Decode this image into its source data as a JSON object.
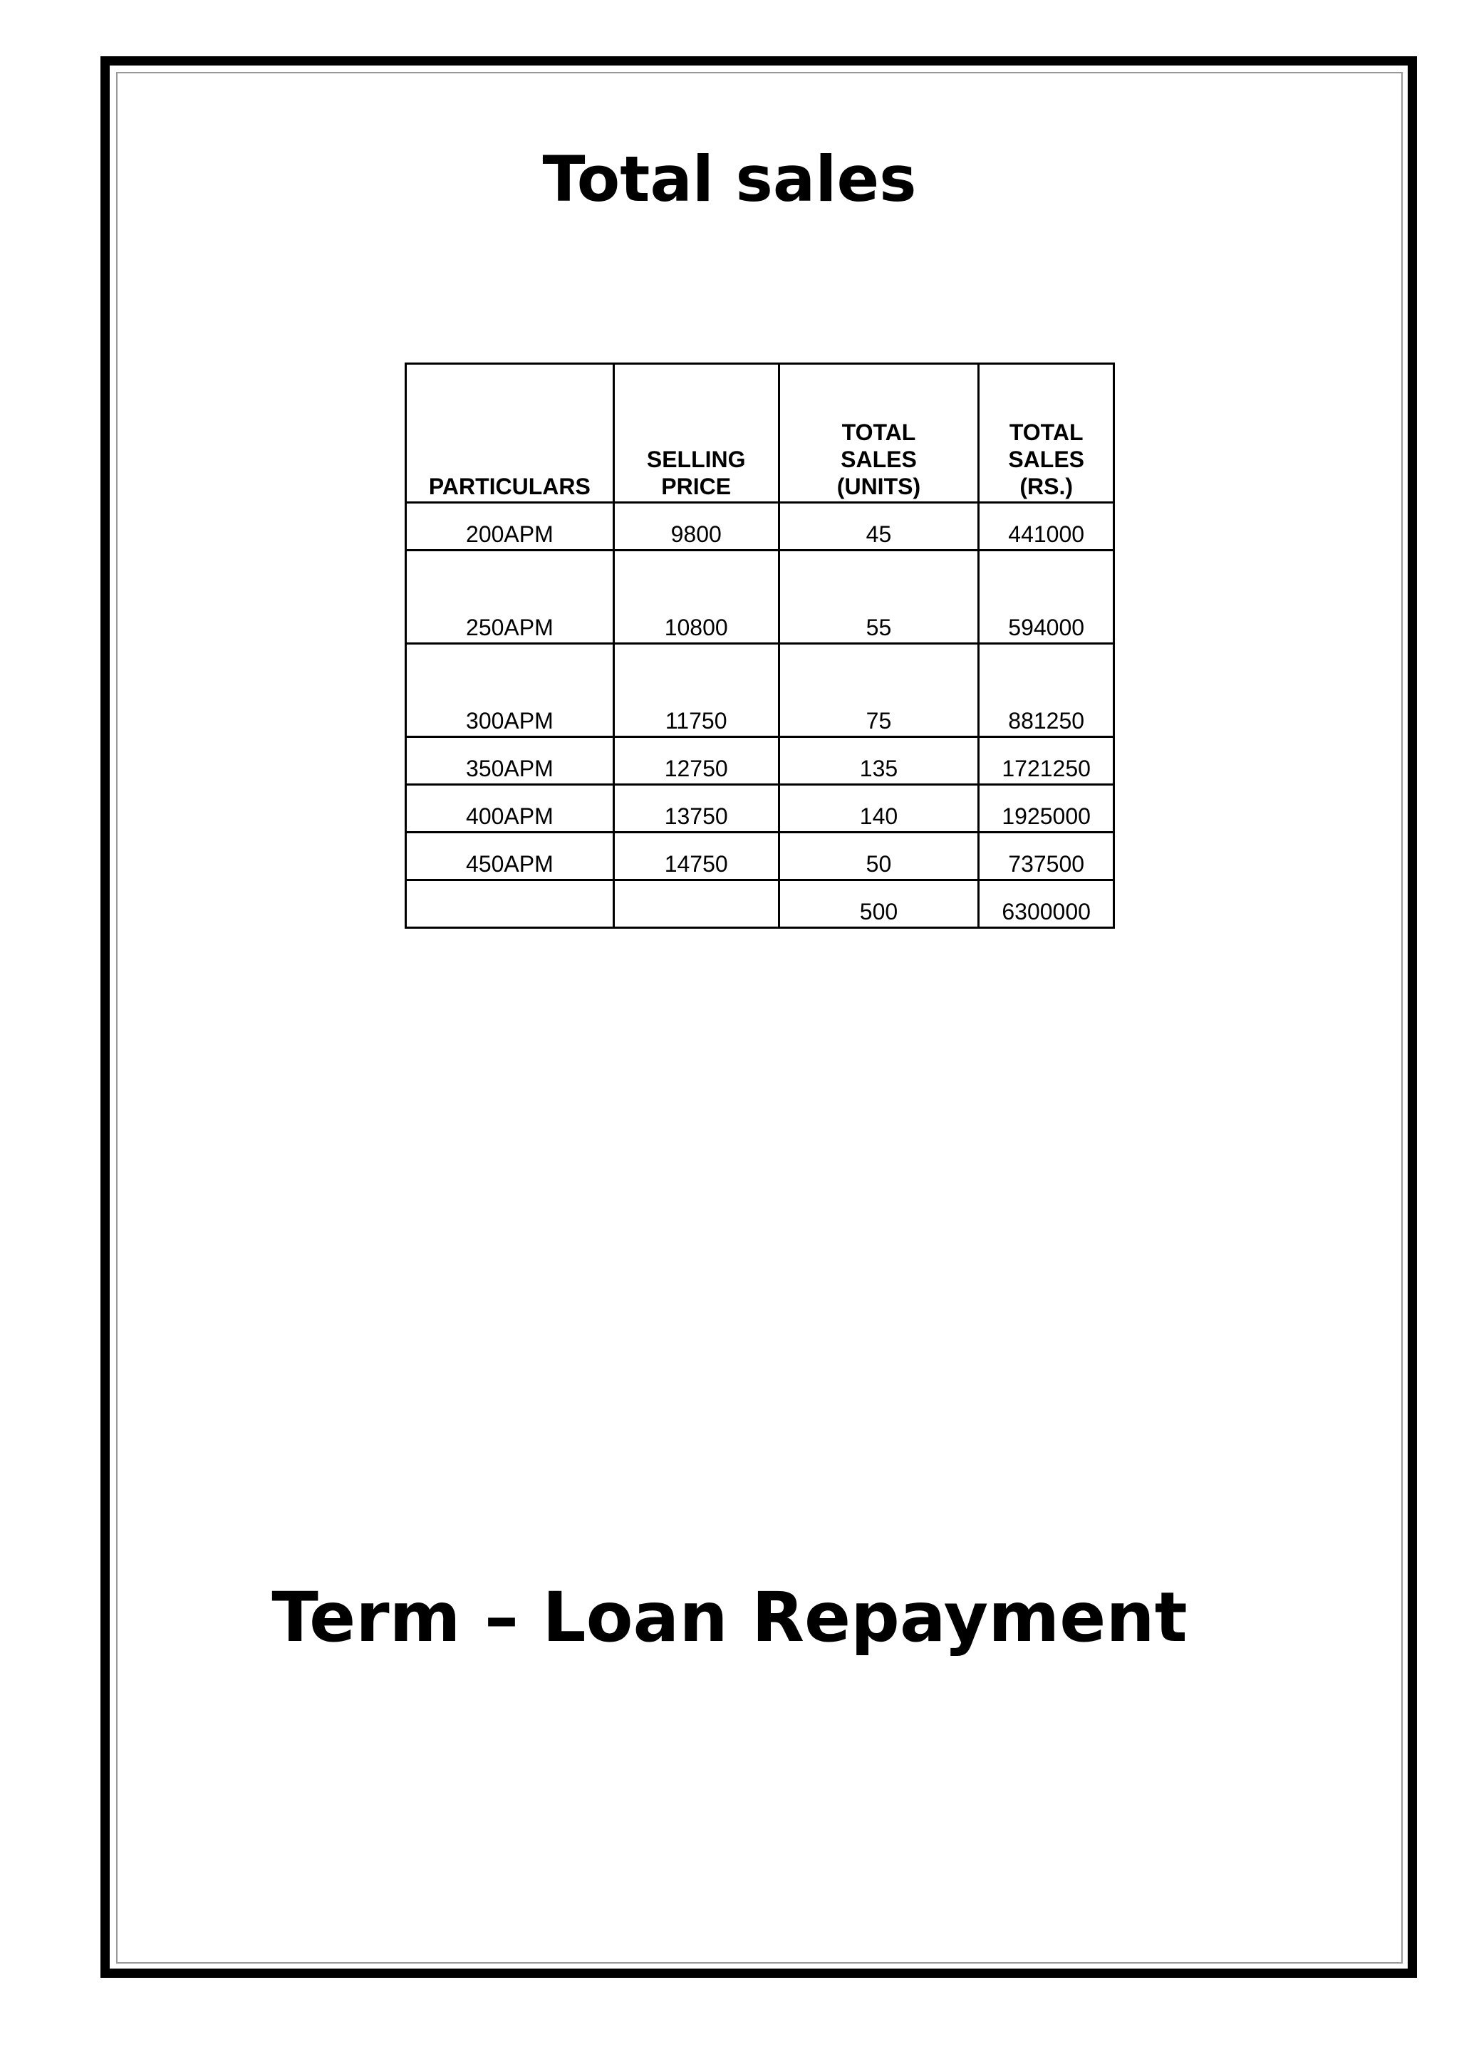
{
  "title": "Total sales",
  "table": {
    "headers": [
      "PARTICULARS",
      "SELLING PRICE",
      "TOTAL SALES (UNITS)",
      "TOTAL SALES (RS.)"
    ],
    "rows": [
      [
        "200APM",
        "9800",
        "45",
        "441000"
      ],
      [
        "250APM",
        "10800",
        "55",
        "594000"
      ],
      [
        "300APM",
        "11750",
        "75",
        "881250"
      ],
      [
        "350APM",
        "12750",
        "135",
        "1721250"
      ],
      [
        "400APM",
        "13750",
        "140",
        "1925000"
      ],
      [
        "450APM",
        "14750",
        "50",
        "737500"
      ],
      [
        "",
        "",
        "500",
        "6300000"
      ]
    ]
  },
  "section_title": "Term – Loan Repayment"
}
